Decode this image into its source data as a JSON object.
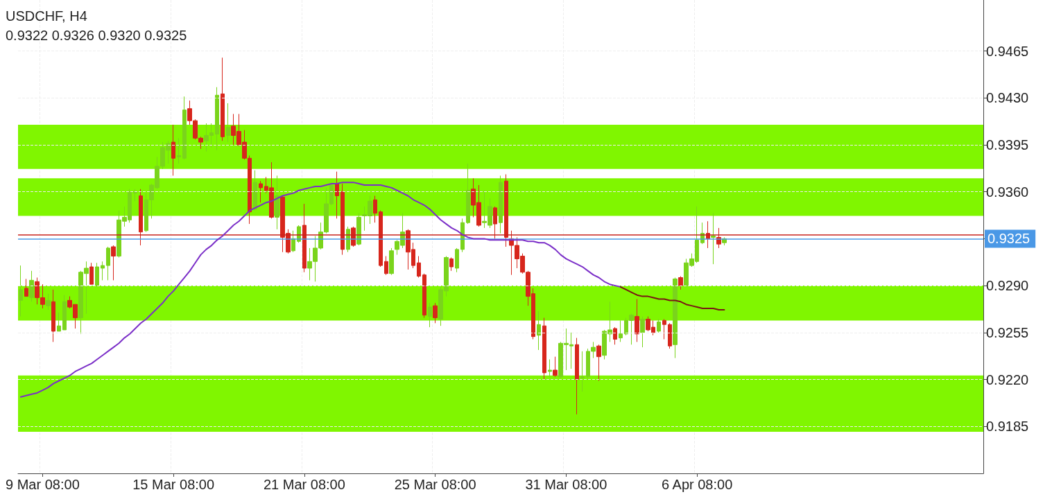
{
  "chart_data": {
    "type": "candlestick",
    "title": "USDCHF, H4",
    "subtitle": "0.9322 0.9326 0.9320 0.9325",
    "categories": [
      null,
      null,
      null,
      null,
      "9 Mar 08:00",
      null,
      null,
      null,
      null,
      null,
      null,
      null,
      null,
      null,
      null,
      null,
      null,
      null,
      null,
      null,
      null,
      null,
      null,
      null,
      null,
      null,
      null,
      null,
      "15 Mar 08:00",
      null,
      null,
      null,
      null,
      null,
      null,
      null,
      null,
      null,
      null,
      null,
      null,
      null,
      null,
      null,
      null,
      null,
      null,
      null,
      null,
      null,
      null,
      null,
      "21 Mar 08:00",
      null,
      null,
      null,
      null,
      null,
      null,
      null,
      null,
      null,
      null,
      null,
      null,
      null,
      null,
      null,
      null,
      null,
      null,
      null,
      null,
      null,
      null,
      null,
      "25 Mar 08:00",
      null,
      null,
      null,
      null,
      null,
      null,
      null,
      null,
      null,
      null,
      null,
      null,
      null,
      null,
      null,
      null,
      null,
      null,
      null,
      null,
      null,
      null,
      null,
      "31 Mar 08:00",
      null,
      null,
      null,
      null,
      null,
      null,
      null,
      null,
      null,
      null,
      null,
      null,
      null,
      null,
      null,
      null,
      null,
      null,
      null,
      null,
      null,
      null,
      null,
      "6 Apr 08:00",
      null,
      null,
      null,
      null,
      null,
      null,
      null,
      null,
      null,
      null,
      null,
      null,
      null,
      null,
      null,
      null,
      null,
      null,
      null,
      null,
      null,
      null,
      null,
      null,
      null,
      null,
      null,
      null,
      null,
      null,
      null,
      null,
      null,
      null,
      null,
      null,
      null,
      null,
      null,
      null,
      null,
      null,
      null,
      null,
      null,
      null,
      null,
      null,
      null,
      null,
      null,
      null
    ],
    "ohlc": [
      [
        0.9279,
        0.9305,
        0.9267,
        0.9287
      ],
      [
        0.9288,
        0.9295,
        0.9282,
        0.9282
      ],
      [
        0.9281,
        0.9301,
        0.9278,
        0.9294
      ],
      [
        0.9293,
        0.9296,
        0.9276,
        0.9281
      ],
      [
        0.9281,
        0.9291,
        0.9273,
        0.9276
      ],
      [
        0.9275,
        0.9284,
        0.9272,
        0.9279
      ],
      [
        0.9278,
        0.9287,
        0.9248,
        0.9256
      ],
      [
        0.9256,
        0.927,
        0.9256,
        0.926
      ],
      [
        0.9257,
        0.9283,
        0.9257,
        0.9278
      ],
      [
        0.9279,
        0.9282,
        0.9273,
        0.9274
      ],
      [
        0.9276,
        0.9276,
        0.9258,
        0.9266
      ],
      [
        0.9266,
        0.9301,
        0.9254,
        0.93
      ],
      [
        0.9299,
        0.9308,
        0.9269,
        0.9303
      ],
      [
        0.9304,
        0.9307,
        0.9291,
        0.9291
      ],
      [
        0.929,
        0.9307,
        0.9289,
        0.9304
      ],
      [
        0.9303,
        0.9308,
        0.9294,
        0.9305
      ],
      [
        0.9305,
        0.9319,
        0.9294,
        0.9318
      ],
      [
        0.9319,
        0.932,
        0.9294,
        0.9312
      ],
      [
        0.9312,
        0.9346,
        0.9311,
        0.9339
      ],
      [
        0.9338,
        0.9349,
        0.9334,
        0.9341
      ],
      [
        0.9339,
        0.9362,
        0.9337,
        0.936
      ],
      [
        0.9359,
        0.9362,
        0.9353,
        0.936
      ],
      [
        0.9357,
        0.9362,
        0.932,
        0.933
      ],
      [
        0.9331,
        0.9359,
        0.933,
        0.9354
      ],
      [
        0.9354,
        0.9366,
        0.934,
        0.9365
      ],
      [
        0.9363,
        0.9386,
        0.9362,
        0.9379
      ],
      [
        0.9379,
        0.9397,
        0.9377,
        0.9393
      ],
      [
        0.9391,
        0.9398,
        0.9381,
        0.9396
      ],
      [
        0.9397,
        0.941,
        0.9372,
        0.9385
      ],
      [
        0.9386,
        0.94,
        0.9381,
        0.9387
      ],
      [
        0.9385,
        0.9431,
        0.9384,
        0.9421
      ],
      [
        0.9422,
        0.9428,
        0.941,
        0.9413
      ],
      [
        0.9413,
        0.9414,
        0.9399,
        0.94
      ],
      [
        0.94,
        0.9401,
        0.9392,
        0.9397
      ],
      [
        0.9398,
        0.9411,
        0.939,
        0.9402
      ],
      [
        0.9402,
        0.9411,
        0.9393,
        0.9404
      ],
      [
        0.9403,
        0.9438,
        0.9391,
        0.9432
      ],
      [
        0.9433,
        0.946,
        0.9398,
        0.9401
      ],
      [
        0.9402,
        0.9426,
        0.9397,
        0.9408
      ],
      [
        0.9409,
        0.9418,
        0.9395,
        0.9402
      ],
      [
        0.9405,
        0.9418,
        0.9394,
        0.9395
      ],
      [
        0.9397,
        0.9406,
        0.9384,
        0.9385
      ],
      [
        0.9385,
        0.9387,
        0.9336,
        0.9345
      ],
      [
        0.9347,
        0.9376,
        0.9346,
        0.9367
      ],
      [
        0.9366,
        0.9368,
        0.9352,
        0.9363
      ],
      [
        0.9364,
        0.9371,
        0.9359,
        0.9361
      ],
      [
        0.9363,
        0.9382,
        0.934,
        0.9341
      ],
      [
        0.9341,
        0.9372,
        0.9332,
        0.9357
      ],
      [
        0.9356,
        0.9357,
        0.9315,
        0.9326
      ],
      [
        0.9329,
        0.9332,
        0.9314,
        0.9315
      ],
      [
        0.9316,
        0.9331,
        0.9315,
        0.9325
      ],
      [
        0.9323,
        0.9335,
        0.9322,
        0.9334
      ],
      [
        0.9335,
        0.9351,
        0.93,
        0.9303
      ],
      [
        0.9303,
        0.9318,
        0.9294,
        0.9308
      ],
      [
        0.9308,
        0.9327,
        0.9293,
        0.9318
      ],
      [
        0.9318,
        0.9337,
        0.9317,
        0.933
      ],
      [
        0.933,
        0.9363,
        0.9329,
        0.9351
      ],
      [
        0.9351,
        0.9366,
        0.935,
        0.9365
      ],
      [
        0.9366,
        0.9375,
        0.934,
        0.9357
      ],
      [
        0.936,
        0.9366,
        0.9313,
        0.9317
      ],
      [
        0.9317,
        0.9334,
        0.9315,
        0.9332
      ],
      [
        0.9333,
        0.9334,
        0.9319,
        0.932
      ],
      [
        0.9321,
        0.9344,
        0.932,
        0.9341
      ],
      [
        0.9342,
        0.9349,
        0.9331,
        0.9343
      ],
      [
        0.9342,
        0.9357,
        0.9336,
        0.9353
      ],
      [
        0.9354,
        0.9357,
        0.9337,
        0.9344
      ],
      [
        0.9345,
        0.9346,
        0.9304,
        0.9305
      ],
      [
        0.9308,
        0.9312,
        0.9298,
        0.9299
      ],
      [
        0.9299,
        0.9318,
        0.9298,
        0.9316
      ],
      [
        0.9317,
        0.9324,
        0.9313,
        0.9323
      ],
      [
        0.932,
        0.9344,
        0.9318,
        0.933
      ],
      [
        0.9331,
        0.9332,
        0.9302,
        0.9315
      ],
      [
        0.9317,
        0.9322,
        0.9303,
        0.9305
      ],
      [
        0.9307,
        0.9312,
        0.9296,
        0.9297
      ],
      [
        0.9298,
        0.9299,
        0.9266,
        0.9268
      ],
      [
        0.9267,
        0.9277,
        0.9259,
        0.9274
      ],
      [
        0.9275,
        0.9277,
        0.9262,
        0.9266
      ],
      [
        0.9265,
        0.9289,
        0.926,
        0.9287
      ],
      [
        0.9286,
        0.9312,
        0.9282,
        0.9311
      ],
      [
        0.931,
        0.9311,
        0.9301,
        0.9304
      ],
      [
        0.9303,
        0.9318,
        0.93,
        0.9317
      ],
      [
        0.9317,
        0.934,
        0.9315,
        0.9337
      ],
      [
        0.9337,
        0.9381,
        0.9336,
        0.9361
      ],
      [
        0.9362,
        0.937,
        0.9341,
        0.935
      ],
      [
        0.9352,
        0.9365,
        0.9334,
        0.9335
      ],
      [
        0.9337,
        0.9361,
        0.9333,
        0.9338
      ],
      [
        0.9335,
        0.9355,
        0.9333,
        0.9349
      ],
      [
        0.9348,
        0.9349,
        0.9325,
        0.9336
      ],
      [
        0.9337,
        0.9372,
        0.9329,
        0.9367
      ],
      [
        0.9368,
        0.9373,
        0.9319,
        0.9326
      ],
      [
        0.9325,
        0.9331,
        0.9298,
        0.932
      ],
      [
        0.932,
        0.9326,
        0.9303,
        0.931
      ],
      [
        0.9312,
        0.9314,
        0.9299,
        0.93
      ],
      [
        0.93,
        0.9301,
        0.9275,
        0.9282
      ],
      [
        0.9284,
        0.9288,
        0.925,
        0.9252
      ],
      [
        0.9253,
        0.9271,
        0.9242,
        0.9261
      ],
      [
        0.926,
        0.9266,
        0.922,
        0.9225
      ],
      [
        0.9226,
        0.9235,
        0.9222,
        0.9227
      ],
      [
        0.9227,
        0.9237,
        0.9222,
        0.9223
      ],
      [
        0.9222,
        0.9248,
        0.9221,
        0.9247
      ],
      [
        0.9246,
        0.9258,
        0.9227,
        0.9247
      ],
      [
        0.9245,
        0.9255,
        0.9228,
        0.9246
      ],
      [
        0.9246,
        0.9251,
        0.9194,
        0.922
      ],
      [
        0.9221,
        0.9241,
        0.9211,
        0.9222
      ],
      [
        0.9222,
        0.9243,
        0.922,
        0.9241
      ],
      [
        0.9241,
        0.9248,
        0.9236,
        0.9244
      ],
      [
        0.9245,
        0.9246,
        0.9219,
        0.9237
      ],
      [
        0.9238,
        0.9257,
        0.9235,
        0.9256
      ],
      [
        0.9254,
        0.9278,
        0.9248,
        0.9257
      ],
      [
        0.9258,
        0.9259,
        0.9246,
        0.925
      ],
      [
        0.9251,
        0.9264,
        0.9248,
        0.9254
      ],
      [
        0.9254,
        0.9266,
        0.9253,
        0.9264
      ],
      [
        0.9264,
        0.9269,
        0.9246,
        0.9268
      ],
      [
        0.9267,
        0.928,
        0.9248,
        0.9254
      ],
      [
        0.9255,
        0.9267,
        0.9244,
        0.9265
      ],
      [
        0.9265,
        0.9267,
        0.9256,
        0.9257
      ],
      [
        0.9259,
        0.9264,
        0.9253,
        0.9255
      ],
      [
        0.9256,
        0.9265,
        0.9255,
        0.9263
      ],
      [
        0.9264,
        0.9265,
        0.925,
        0.9261
      ],
      [
        0.9261,
        0.9262,
        0.9243,
        0.9245
      ],
      [
        0.9246,
        0.9296,
        0.9236,
        0.9295
      ],
      [
        0.9296,
        0.9297,
        0.9287,
        0.929
      ],
      [
        0.929,
        0.931,
        0.9289,
        0.9307
      ],
      [
        0.9305,
        0.9314,
        0.9304,
        0.931
      ],
      [
        0.9308,
        0.9349,
        0.9307,
        0.9324
      ],
      [
        0.9322,
        0.9337,
        0.9321,
        0.9329
      ],
      [
        0.9329,
        0.9338,
        0.9318,
        0.9325
      ],
      [
        0.9326,
        0.9344,
        0.9306,
        0.9327
      ],
      [
        0.9326,
        0.9333,
        0.9318,
        0.9321
      ],
      [
        0.9322,
        0.9326,
        0.932,
        0.9325
      ],
      null,
      null,
      null,
      null,
      null,
      null,
      null,
      null,
      null,
      null,
      null,
      null,
      null,
      null,
      null,
      null,
      null,
      null,
      null,
      null,
      null,
      null,
      null,
      null,
      null,
      null,
      null,
      null,
      null,
      null,
      null,
      null,
      null,
      null,
      null,
      null,
      null,
      null,
      null,
      null,
      null,
      null,
      null,
      null,
      null,
      null,
      null
    ],
    "colors": [
      "#7ad41c",
      "#d7261c",
      "#7ad41c",
      "#d7261c",
      "#d7261c",
      "#7ad41c",
      "#d7261c",
      "#7ad41c",
      "#7ad41c",
      "#d7261c",
      "#d7261c",
      "#7ad41c",
      "#7ad41c",
      "#d7261c",
      "#7ad41c",
      "#7ad41c",
      "#7ad41c",
      "#d7261c",
      "#7ad41c",
      "#7ad41c",
      "#7ad41c",
      "#7ad41c",
      "#d7261c",
      "#7ad41c",
      "#7ad41c",
      "#7ad41c",
      "#7ad41c",
      "#7ad41c",
      "#d7261c",
      "#7ad41c",
      "#7ad41c",
      "#d7261c",
      "#d7261c",
      "#d7261c",
      "#7ad41c",
      "#7ad41c",
      "#7ad41c",
      "#d7261c",
      "#7ad41c",
      "#d7261c",
      "#d7261c",
      "#d7261c",
      "#d7261c",
      "#7ad41c",
      "#d7261c",
      "#d7261c",
      "#d7261c",
      "#7ad41c",
      "#d7261c",
      "#d7261c",
      "#7ad41c",
      "#7ad41c",
      "#d7261c",
      "#7ad41c",
      "#7ad41c",
      "#7ad41c",
      "#7ad41c",
      "#7ad41c",
      "#d7261c",
      "#d7261c",
      "#7ad41c",
      "#d7261c",
      "#7ad41c",
      "#7ad41c",
      "#7ad41c",
      "#d7261c",
      "#d7261c",
      "#d7261c",
      "#7ad41c",
      "#7ad41c",
      "#7ad41c",
      "#d7261c",
      "#d7261c",
      "#d7261c",
      "#d7261c",
      "#7ad41c",
      "#d7261c",
      "#7ad41c",
      "#7ad41c",
      "#d7261c",
      "#7ad41c",
      "#7ad41c",
      "#7ad41c",
      "#d7261c",
      "#d7261c",
      "#7ad41c",
      "#7ad41c",
      "#d7261c",
      "#7ad41c",
      "#d7261c",
      "#d7261c",
      "#d7261c",
      "#d7261c",
      "#d7261c",
      "#d7261c",
      "#7ad41c",
      "#d7261c",
      "#7ad41c",
      "#d7261c",
      "#7ad41c",
      "#7ad41c",
      "#7ad41c",
      "#d7261c",
      "#7ad41c",
      "#7ad41c",
      "#7ad41c",
      "#d7261c",
      "#7ad41c",
      "#7ad41c",
      "#d7261c",
      "#7ad41c",
      "#7ad41c",
      "#7ad41c",
      "#d7261c",
      "#7ad41c",
      "#d7261c",
      "#d7261c",
      "#7ad41c",
      "#d7261c",
      "#d7261c",
      "#7ad41c",
      "#d7261c",
      "#7ad41c",
      "#7ad41c",
      "#7ad41c",
      "#7ad41c",
      "#d7261c",
      "#7ad41c",
      "#d7261c",
      "#7ad41c",
      null,
      null,
      null,
      null,
      null,
      null,
      null,
      null,
      null,
      null,
      null,
      null,
      null,
      null,
      null,
      null,
      null,
      null,
      null,
      null,
      null,
      null,
      null,
      null,
      null,
      null,
      null,
      null,
      null,
      null,
      null,
      null,
      null,
      null,
      null,
      null,
      null,
      null,
      null,
      null,
      null,
      null,
      null,
      null,
      null,
      null,
      null
    ],
    "series": [
      {
        "type": "line",
        "color": "#7b2fc8",
        "values": [
          0.9207,
          0.9208,
          0.9209,
          0.921,
          0.9212,
          0.9214,
          0.9217,
          0.9219,
          0.9221,
          0.9223,
          0.9226,
          0.9228,
          0.923,
          0.9232,
          0.9235,
          0.9238,
          0.9241,
          0.9244,
          0.9247,
          0.9251,
          0.9254,
          0.9258,
          0.9262,
          0.9265,
          0.9269,
          0.9273,
          0.9277,
          0.9282,
          0.9286,
          0.9291,
          0.9296,
          0.9301,
          0.9307,
          0.9313,
          0.9317,
          0.932,
          0.9324,
          0.9327,
          0.9331,
          0.9335,
          0.9338,
          0.9342,
          0.9346,
          0.9348,
          0.935,
          0.9352,
          0.9353,
          0.9355,
          0.9357,
          0.9358,
          0.9359,
          0.9361,
          0.9362,
          0.9363,
          0.9364,
          0.9364,
          0.9365,
          0.9366,
          0.9366,
          0.9367,
          0.9367,
          0.9367,
          0.9366,
          0.9365,
          0.9365,
          0.9365,
          0.9365,
          0.9364,
          0.9363,
          0.9361,
          0.9359,
          0.9357,
          0.9354,
          0.9352,
          0.935,
          0.9347,
          0.9343,
          0.9339,
          0.9336,
          0.9333,
          0.9331,
          0.9328,
          0.9326,
          0.9325,
          0.9325,
          0.9325,
          0.9324,
          0.9324,
          0.9324,
          0.9324,
          0.9324,
          0.9324,
          0.9324,
          0.9323,
          0.9323,
          0.9322,
          0.9322,
          0.932,
          0.9317,
          0.9313,
          0.931,
          0.9308,
          0.9306,
          0.9304,
          0.9301,
          0.9298,
          0.9296,
          0.9293,
          0.9291,
          0.929,
          0.9289,
          null,
          null,
          null,
          null,
          null,
          null,
          null,
          null,
          null,
          null,
          null,
          null,
          null,
          null,
          null,
          null,
          null,
          null,
          null,
          null,
          null,
          null,
          null,
          null,
          null,
          null,
          null,
          null,
          null,
          null,
          null,
          null,
          null,
          null,
          null,
          null,
          null,
          null,
          null,
          null,
          null,
          null,
          null,
          null,
          null,
          null,
          null,
          null,
          null,
          null,
          null,
          null,
          null,
          null,
          null,
          null,
          null,
          null,
          null,
          null,
          null,
          null,
          null,
          null,
          null,
          null
        ]
      },
      {
        "type": "line",
        "color": "#7a1414",
        "values": [
          null,
          null,
          null,
          null,
          null,
          null,
          null,
          null,
          null,
          null,
          null,
          null,
          null,
          null,
          null,
          null,
          null,
          null,
          null,
          null,
          null,
          null,
          null,
          null,
          null,
          null,
          null,
          null,
          null,
          null,
          null,
          null,
          null,
          null,
          null,
          null,
          null,
          null,
          null,
          null,
          null,
          null,
          null,
          null,
          null,
          null,
          null,
          null,
          null,
          null,
          null,
          null,
          null,
          null,
          null,
          null,
          null,
          null,
          null,
          null,
          null,
          null,
          null,
          null,
          null,
          null,
          null,
          null,
          null,
          null,
          null,
          null,
          null,
          null,
          null,
          null,
          null,
          null,
          null,
          null,
          null,
          null,
          null,
          null,
          null,
          null,
          null,
          null,
          null,
          null,
          null,
          null,
          null,
          null,
          null,
          null,
          null,
          null,
          null,
          null,
          null,
          null,
          null,
          null,
          null,
          null,
          null,
          null,
          null,
          null,
          0.9289,
          0.9287,
          0.9285,
          0.9283,
          0.9282,
          0.9282,
          0.9281,
          0.928,
          0.928,
          0.9279,
          0.9279,
          0.9278,
          0.9276,
          0.9275,
          0.9274,
          0.9273,
          0.9273,
          0.9273,
          0.9272,
          0.9272,
          null,
          null,
          null,
          null,
          null,
          null,
          null,
          null,
          null,
          null,
          null,
          null,
          null,
          null,
          null,
          null,
          null,
          null,
          null,
          null,
          null,
          null,
          null,
          null,
          null,
          null,
          null,
          null,
          null,
          null,
          null,
          null,
          null,
          null,
          null,
          null,
          null,
          null,
          null,
          null,
          null,
          null,
          null,
          null,
          null,
          null,
          null
        ]
      }
    ],
    "ylim": [
      0.915,
      0.9503
    ],
    "yticks": [
      {
        "value": 0.9185,
        "label": "0.9185"
      },
      {
        "value": 0.922,
        "label": "0.9220"
      },
      {
        "value": 0.9255,
        "label": "0.9255"
      },
      {
        "value": 0.929,
        "label": "0.9290"
      },
      {
        "value": 0.9325,
        "label": "0.9325"
      },
      {
        "value": 0.936,
        "label": "0.9360"
      },
      {
        "value": 0.9395,
        "label": "0.9395"
      },
      {
        "value": 0.943,
        "label": "0.9430"
      },
      {
        "value": 0.9465,
        "label": "0.9465"
      }
    ],
    "ref_lines": [
      {
        "axis": "y",
        "value": 0.9328,
        "label": null,
        "color": "#c9221b"
      },
      {
        "axis": "y",
        "value": 0.9325,
        "label": "0.9325",
        "color": "#4a98e6"
      }
    ],
    "bands": [
      {
        "axis": "y",
        "from": 0.9377,
        "to": 0.941,
        "color": "#80f600"
      },
      {
        "axis": "y",
        "from": 0.9342,
        "to": 0.937,
        "color": "#80f600"
      },
      {
        "axis": "y",
        "from": 0.9264,
        "to": 0.929,
        "color": "#80f600"
      },
      {
        "axis": "y",
        "from": 0.9181,
        "to": 0.9223,
        "color": "#80f600"
      }
    ],
    "grid": true,
    "marker": "none"
  }
}
